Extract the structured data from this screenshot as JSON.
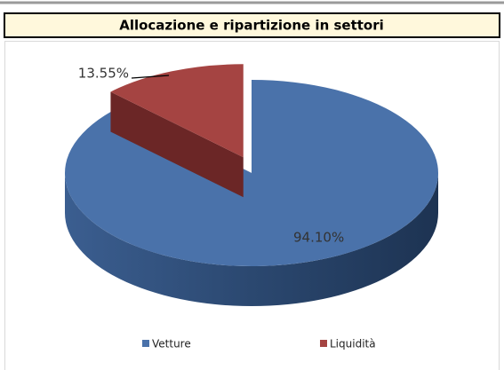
{
  "chart_data": {
    "type": "pie",
    "title": "Allocazione e ripartizione in settori",
    "categories": [
      "Vetture",
      "Liquidità"
    ],
    "values": [
      94.1,
      13.55
    ],
    "value_labels": [
      "94.10%",
      "13.55%"
    ],
    "colors": [
      "#4a72aa",
      "#a54442"
    ],
    "legend": "bottom"
  }
}
